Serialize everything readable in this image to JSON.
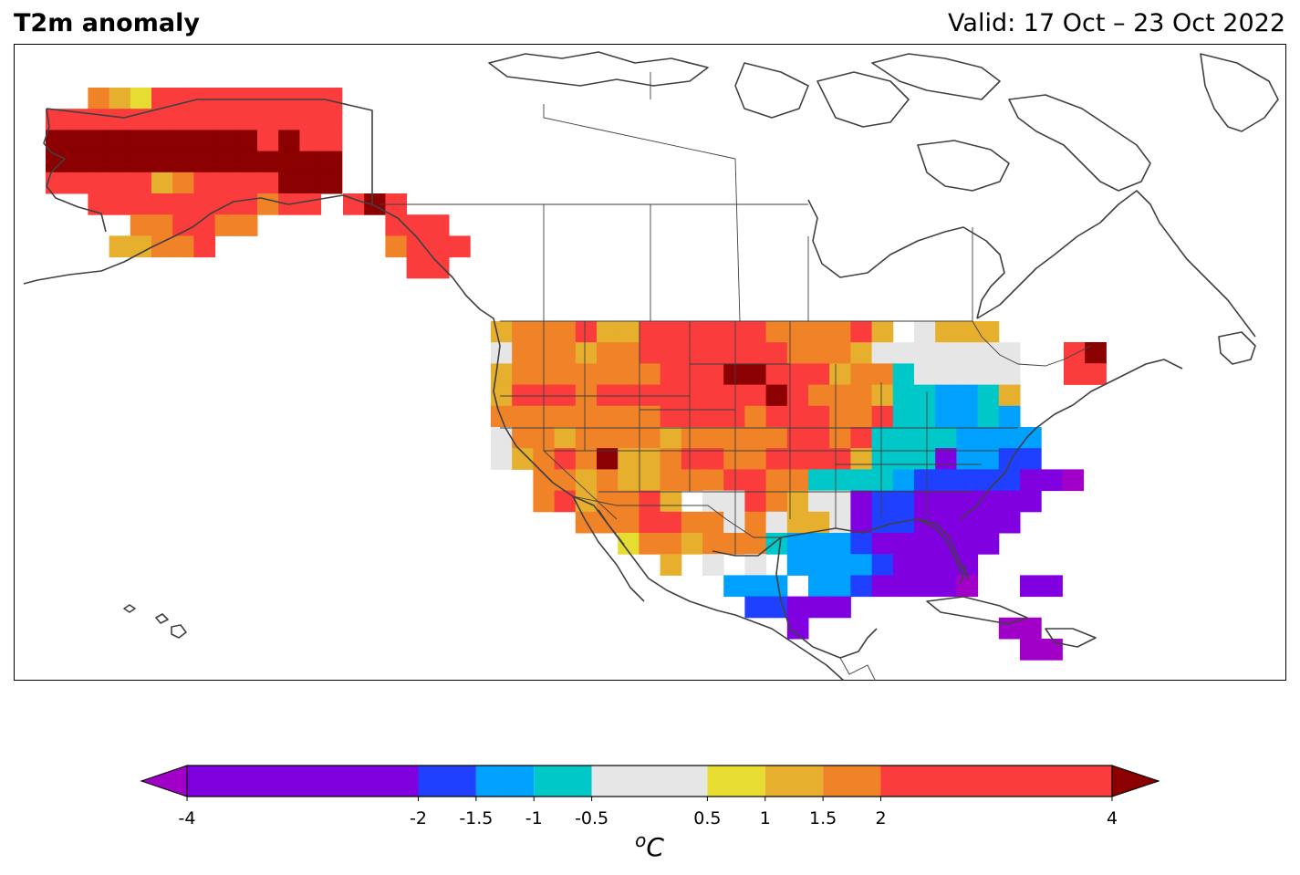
{
  "title": "T2m anomaly",
  "valid_label": "Valid: 17 Oct – 23 Oct 2022",
  "colorbar": {
    "bounds": [
      -4,
      -2,
      -1.5,
      -1,
      -0.5,
      0.5,
      1,
      1.5,
      2,
      4
    ],
    "tick_labels": [
      "-4",
      "-2",
      "-1.5",
      "-1",
      "-0.5",
      "0.5",
      "1",
      "1.5",
      "2",
      "4"
    ],
    "colors": [
      "#8000e0",
      "#2040ff",
      "#00a0ff",
      "#00c8c8",
      "#e6e6e6",
      "#e6dc32",
      "#e6af2d",
      "#f08228",
      "#fa3c3c"
    ],
    "under_color": "#a000c8",
    "over_color": "#8b0000",
    "extend": "both",
    "unit": "C",
    "unit_superscript": "o"
  },
  "map": {
    "region": "North America",
    "projection": "lat-lon",
    "coastline_color": "#404040",
    "land_fill": "#ffffff"
  }
}
